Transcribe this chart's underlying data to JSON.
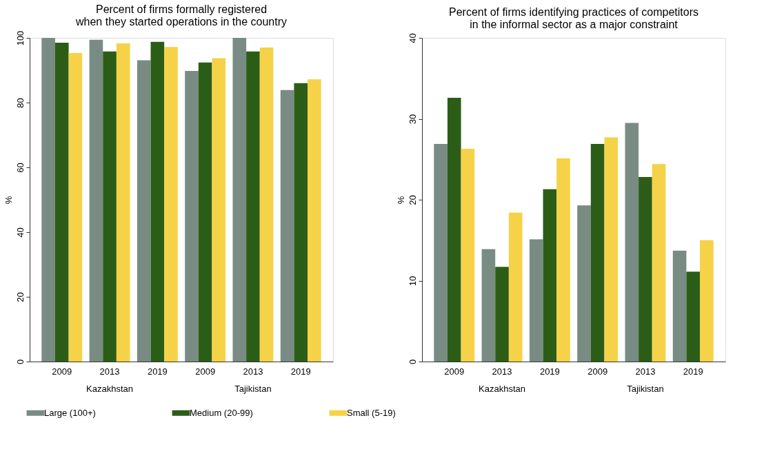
{
  "chart_data": [
    {
      "type": "bar",
      "title": "Percent of firms formally registered\nwhen they started operations in the country",
      "ylabel": "%",
      "categories": [
        "2009",
        "2013",
        "2019",
        "2009",
        "2013",
        "2019"
      ],
      "annotations": [
        "Kazakhstan",
        "Tajikistan"
      ],
      "ylim": [
        0,
        100
      ],
      "yticks": [
        0,
        20,
        40,
        60,
        80,
        100
      ],
      "grid": false,
      "legend": "bottom",
      "series": [
        {
          "name": "Large (100+)",
          "color": "#788c84",
          "values": [
            100,
            99.4,
            93.1,
            89.8,
            100,
            83.9
          ]
        },
        {
          "name": "Medium (20-99)",
          "color": "#2c5d17",
          "values": [
            98.5,
            95.8,
            98.8,
            92.4,
            95.8,
            86.0
          ]
        },
        {
          "name": "Small (5-19)",
          "color": "#f5d247",
          "values": [
            95.3,
            98.3,
            97.2,
            93.7,
            97.0,
            87.2
          ]
        }
      ]
    },
    {
      "type": "bar",
      "title": "Percent of firms identifying practices of competitors\nin the informal sector as a major constraint",
      "ylabel": "%",
      "categories": [
        "2009",
        "2013",
        "2019",
        "2009",
        "2013",
        "2019"
      ],
      "annotations": [
        "Kazakhstan",
        "Tajikistan"
      ],
      "ylim": [
        0,
        40
      ],
      "yticks": [
        0,
        10,
        20,
        30,
        40
      ],
      "grid": false,
      "legend": "bottom",
      "series": [
        {
          "name": "Large (100+)",
          "color": "#788c84",
          "values": [
            26.9,
            13.9,
            15.1,
            19.3,
            29.5,
            13.7
          ]
        },
        {
          "name": "Medium (20-99)",
          "color": "#2c5d17",
          "values": [
            32.6,
            11.7,
            21.3,
            26.9,
            22.8,
            11.1
          ]
        },
        {
          "name": "Small (5-19)",
          "color": "#f5d247",
          "values": [
            26.3,
            18.4,
            25.1,
            27.7,
            24.4,
            15.0
          ]
        }
      ]
    }
  ]
}
